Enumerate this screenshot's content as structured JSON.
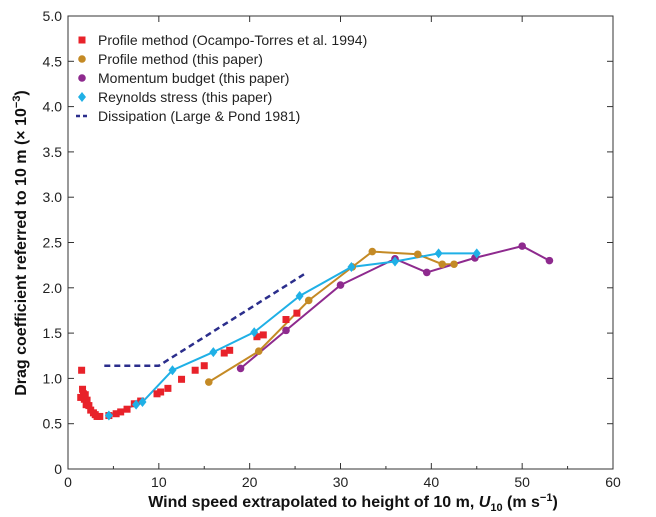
{
  "chart_data": {
    "type": "scatter",
    "xlabel_main": "Wind speed extrapolated to height of 10 m, ",
    "xlabel_var": "U",
    "xlabel_sub": "10",
    "xlabel_unit": " (m s",
    "xlabel_unit_exp": "−1",
    "xlabel_unit_close": ")",
    "ylabel_main": "Drag coefficient referred to 10 m (× 10",
    "ylabel_exp": "−3",
    "ylabel_close": ")",
    "xlim": [
      0,
      60
    ],
    "ylim": [
      0,
      5.0
    ],
    "x_ticks": [
      0,
      10,
      20,
      30,
      40,
      50,
      60
    ],
    "x_tick_labels": [
      "0",
      "10",
      "20",
      "30",
      "40",
      "50",
      "60"
    ],
    "y_ticks": [
      0,
      0.5,
      1.0,
      1.5,
      2.0,
      2.5,
      3.0,
      3.5,
      4.0,
      4.5,
      5.0
    ],
    "y_tick_labels": [
      "0",
      "0.5",
      "1.0",
      "1.5",
      "2.0",
      "2.5",
      "3.0",
      "3.5",
      "4.0",
      "4.5",
      "5.0"
    ],
    "grid": false,
    "legend_position": "top-left",
    "series": [
      {
        "name": "Profile method (Ocampo-Torres et al. 1994)",
        "marker": "square",
        "connected": false,
        "color": "#e8222a",
        "points": [
          [
            1.4,
            0.79
          ],
          [
            1.5,
            1.09
          ],
          [
            1.6,
            0.88
          ],
          [
            1.7,
            0.83
          ],
          [
            1.8,
            0.77
          ],
          [
            1.9,
            0.82
          ],
          [
            2.0,
            0.71
          ],
          [
            2.1,
            0.76
          ],
          [
            2.3,
            0.7
          ],
          [
            2.5,
            0.65
          ],
          [
            2.8,
            0.62
          ],
          [
            3.0,
            0.6
          ],
          [
            3.2,
            0.58
          ],
          [
            3.5,
            0.58
          ],
          [
            4.5,
            0.59
          ],
          [
            5.3,
            0.61
          ],
          [
            5.8,
            0.63
          ],
          [
            6.5,
            0.66
          ],
          [
            7.3,
            0.72
          ],
          [
            8.0,
            0.75
          ],
          [
            9.8,
            0.83
          ],
          [
            10.2,
            0.85
          ],
          [
            11.0,
            0.89
          ],
          [
            12.5,
            0.99
          ],
          [
            14.0,
            1.09
          ],
          [
            15.0,
            1.14
          ],
          [
            17.2,
            1.28
          ],
          [
            17.8,
            1.31
          ],
          [
            20.8,
            1.46
          ],
          [
            21.5,
            1.48
          ],
          [
            24.0,
            1.65
          ],
          [
            25.2,
            1.72
          ]
        ]
      },
      {
        "name": "Profile method (this paper)",
        "marker": "circle",
        "connected": true,
        "color": "#c48a25",
        "points": [
          [
            15.5,
            0.96
          ],
          [
            21.0,
            1.3
          ],
          [
            26.5,
            1.86
          ],
          [
            31.3,
            2.23
          ],
          [
            33.5,
            2.4
          ],
          [
            38.5,
            2.37
          ],
          [
            41.2,
            2.26
          ],
          [
            42.5,
            2.26
          ]
        ]
      },
      {
        "name": "Momentum budget (this paper)",
        "marker": "circle",
        "connected": true,
        "color": "#8e2a8e",
        "points": [
          [
            19.0,
            1.11
          ],
          [
            24.0,
            1.53
          ],
          [
            30.0,
            2.03
          ],
          [
            36.0,
            2.32
          ],
          [
            39.5,
            2.17
          ],
          [
            44.8,
            2.33
          ],
          [
            50.0,
            2.46
          ],
          [
            53.0,
            2.3
          ]
        ]
      },
      {
        "name": "Reynolds stress (this paper)",
        "marker": "diamond",
        "connected": true,
        "color": "#1fb0e6",
        "points": [
          [
            4.5,
            0.59
          ],
          [
            7.5,
            0.71
          ],
          [
            8.2,
            0.74
          ],
          [
            11.5,
            1.09
          ],
          [
            16.0,
            1.29
          ],
          [
            20.5,
            1.51
          ],
          [
            25.5,
            1.91
          ],
          [
            31.2,
            2.23
          ],
          [
            36.0,
            2.29
          ],
          [
            40.8,
            2.38
          ],
          [
            45.0,
            2.38
          ]
        ]
      },
      {
        "name": "Dissipation (Large & Pond 1981)",
        "marker": "none",
        "connected": true,
        "dashed": true,
        "color": "#2b2e8c",
        "points": [
          [
            4.0,
            1.14
          ],
          [
            10.0,
            1.14
          ],
          [
            26.0,
            2.15
          ]
        ]
      }
    ]
  }
}
